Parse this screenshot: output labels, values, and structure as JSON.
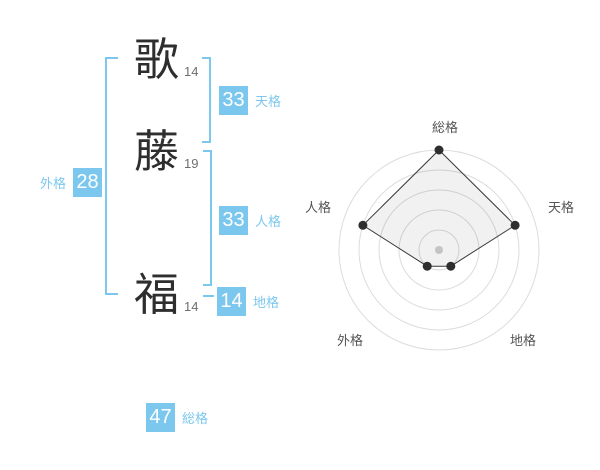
{
  "name": {
    "characters": [
      {
        "char": "歌",
        "strokes": "14"
      },
      {
        "char": "藤",
        "strokes": "19"
      },
      {
        "char": "福",
        "strokes": "14"
      }
    ]
  },
  "scores": {
    "gaikaku": {
      "label": "外格",
      "value": "28"
    },
    "tenkaku": {
      "label": "天格",
      "value": "33"
    },
    "jinkaku": {
      "label": "人格",
      "value": "33"
    },
    "chikaku": {
      "label": "地格",
      "value": "14"
    },
    "soukaku": {
      "label": "総格",
      "value": "47"
    }
  },
  "chart_data": {
    "type": "radar",
    "categories": [
      "総格",
      "天格",
      "地格",
      "外格",
      "人格"
    ],
    "values": [
      5,
      4,
      1,
      1,
      4
    ],
    "scale": {
      "min": 0,
      "max": 5,
      "rings": 5
    },
    "legend": false,
    "grid": "circular"
  },
  "colors": {
    "accent": "#7cc7ee",
    "box_text": "#ffffff",
    "kanji": "#2e2e2e",
    "strokes_text": "#6e6e6e",
    "ring": "#dcdcdc",
    "radar_line": "#3a3a3a",
    "radar_fill": "rgba(0,0,0,0.055)",
    "radar_dot": "#2e2e2e",
    "radar_center_dot": "#c4c4c4",
    "axis_label": "#555555"
  }
}
